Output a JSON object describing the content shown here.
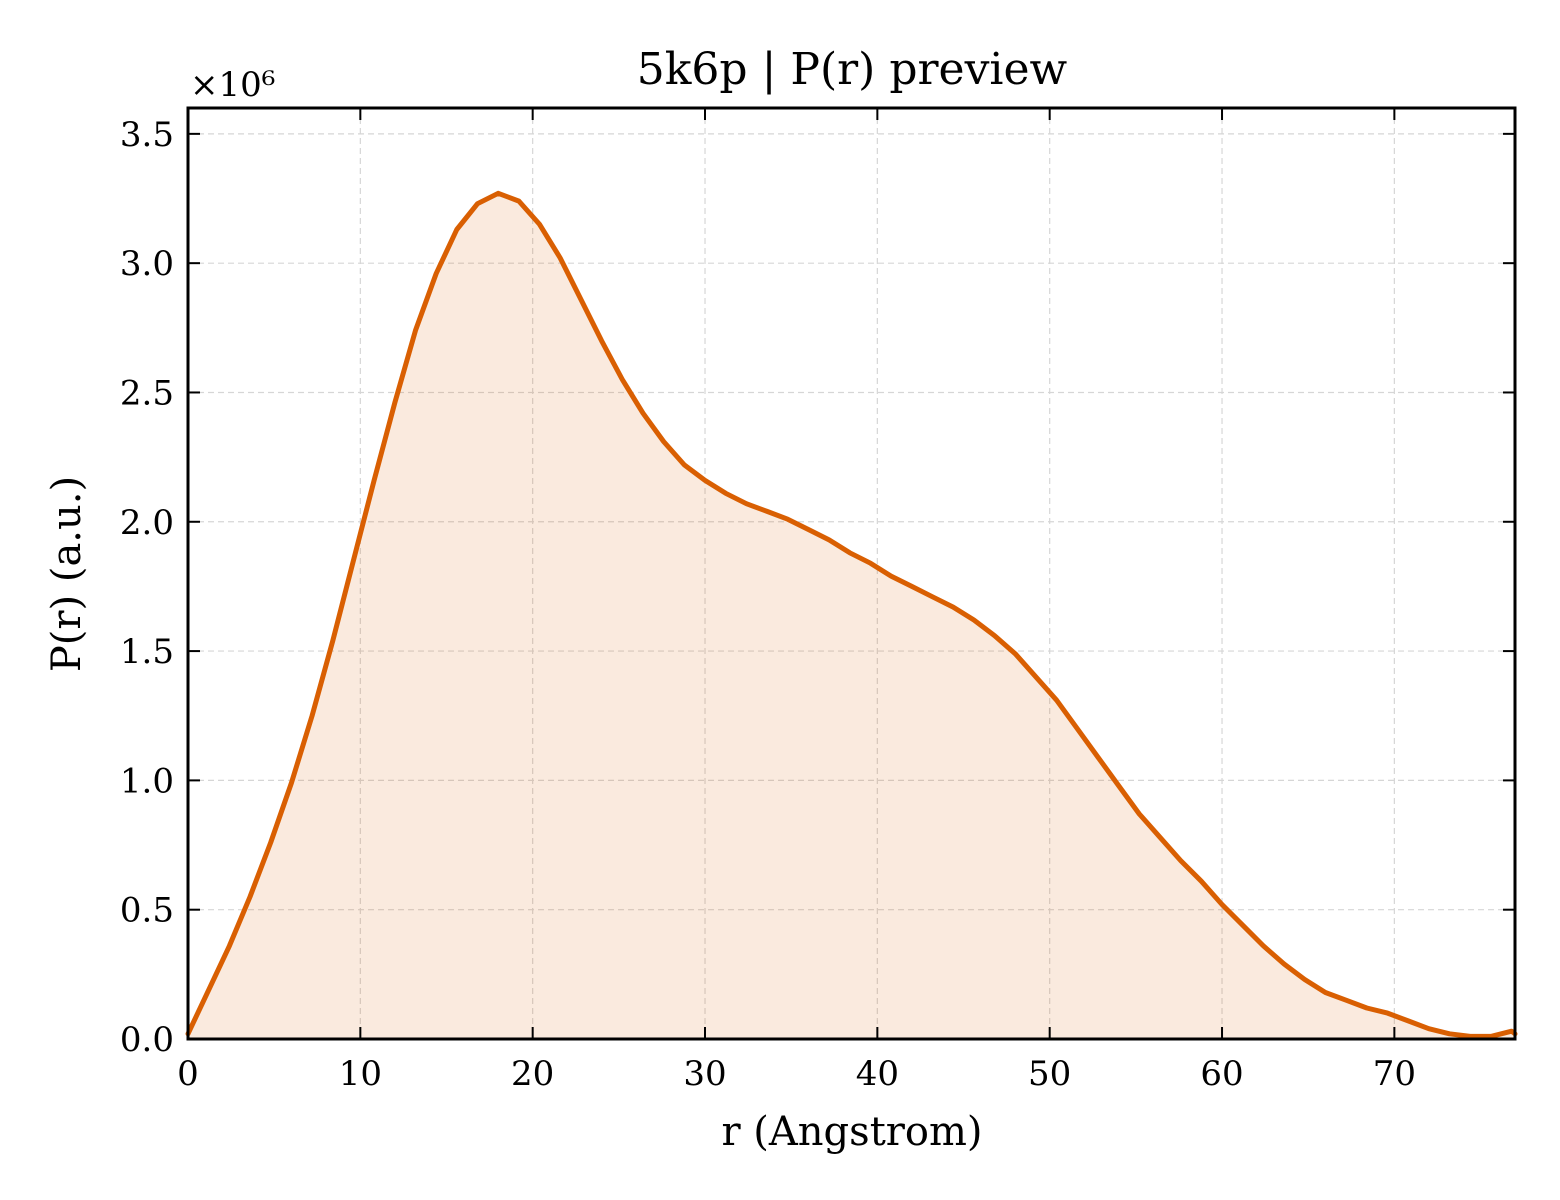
{
  "chart_data": {
    "type": "area",
    "title": "5k6p | P(r) preview",
    "xlabel": "r (Angstrom)",
    "ylabel": "P(r) (a.u.)",
    "y_multiplier_label": "×10⁶",
    "y_multiplier": 1000000,
    "xlim": [
      0,
      77
    ],
    "ylim": [
      0,
      3.6
    ],
    "x_ticks": [
      0,
      10,
      20,
      30,
      40,
      50,
      60,
      70
    ],
    "x_tick_labels": [
      "0",
      "10",
      "20",
      "30",
      "40",
      "50",
      "60",
      "70"
    ],
    "y_ticks": [
      0,
      0.5,
      1.0,
      1.5,
      2.0,
      2.5,
      3.0,
      3.5
    ],
    "y_tick_labels": [
      "0.0",
      "0.5",
      "1.0",
      "1.5",
      "2.0",
      "2.5",
      "3.0",
      "3.5"
    ],
    "grid": true,
    "line_color": "#d95f02",
    "fill_color": "#d95f02",
    "x": [
      0,
      1.2,
      2.4,
      3.6,
      4.8,
      6.0,
      7.2,
      8.4,
      9.6,
      10.8,
      12.0,
      13.2,
      14.4,
      15.6,
      16.8,
      18.0,
      19.2,
      20.4,
      21.6,
      22.8,
      24.0,
      25.2,
      26.4,
      27.6,
      28.8,
      30.0,
      31.2,
      32.4,
      33.6,
      34.8,
      36.0,
      37.2,
      38.4,
      39.6,
      40.8,
      42.0,
      43.2,
      44.4,
      45.6,
      46.8,
      48.0,
      49.2,
      50.4,
      51.6,
      52.8,
      54.0,
      55.2,
      56.4,
      57.6,
      58.8,
      60.0,
      61.2,
      62.4,
      63.6,
      64.8,
      66.0,
      67.2,
      68.4,
      69.6,
      70.8,
      72.0,
      73.2,
      74.4,
      75.6,
      76.8,
      77.0
    ],
    "y": [
      0.02,
      0.19,
      0.36,
      0.55,
      0.76,
      0.99,
      1.25,
      1.54,
      1.85,
      2.16,
      2.46,
      2.74,
      2.96,
      3.13,
      3.23,
      3.27,
      3.24,
      3.15,
      3.02,
      2.86,
      2.7,
      2.55,
      2.42,
      2.31,
      2.22,
      2.16,
      2.11,
      2.07,
      2.04,
      2.01,
      1.97,
      1.93,
      1.88,
      1.84,
      1.79,
      1.75,
      1.71,
      1.67,
      1.62,
      1.56,
      1.49,
      1.4,
      1.31,
      1.2,
      1.09,
      0.98,
      0.87,
      0.78,
      0.69,
      0.61,
      0.52,
      0.44,
      0.36,
      0.29,
      0.23,
      0.18,
      0.15,
      0.12,
      0.1,
      0.07,
      0.04,
      0.02,
      0.01,
      0.01,
      0.03,
      0.02
    ]
  }
}
